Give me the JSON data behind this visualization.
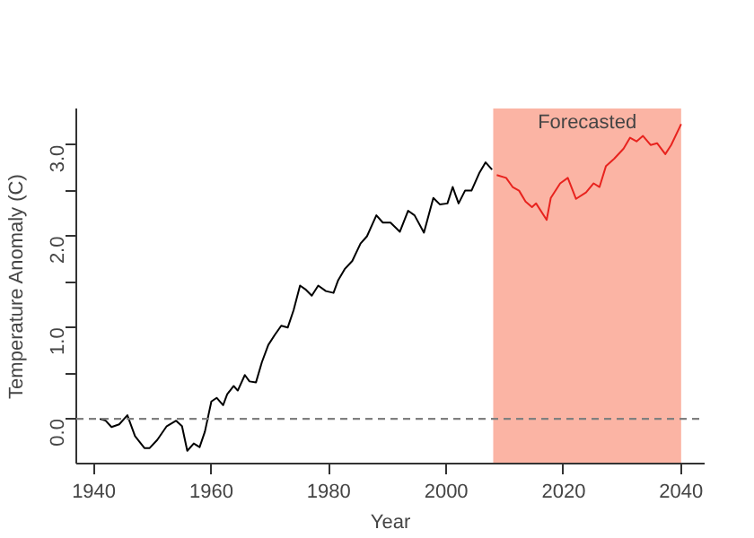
{
  "chart_data": {
    "type": "line",
    "xlabel": "Year",
    "ylabel": "Temperature Anomaly (C)",
    "series": [
      {
        "color": "#000000",
        "x": [
          1941,
          1942,
          1943,
          1944.3,
          1945.7,
          1947,
          1948.6,
          1949.5,
          1950.8,
          1952.4,
          1954,
          1955,
          1955.9,
          1957,
          1958,
          1958.9,
          1960,
          1960.9,
          1962,
          1962.7,
          1963.8,
          1964.5,
          1965.7,
          1966.5,
          1967.6,
          1968.6,
          1969.7,
          1970.8,
          1971.9,
          1973,
          1974,
          1975.1,
          1976,
          1977.1,
          1978.2,
          1979.5,
          1980.8,
          1981.6,
          1982.7,
          1984,
          1985.4,
          1986.5,
          1988.1,
          1989.2,
          1990.5,
          1992.1,
          1993.5,
          1994.6,
          1996.2,
          1997.8,
          1998.9,
          2000.2,
          2001.1,
          2002.1,
          2003.2,
          2004.3,
          2005.6,
          2006.7,
          2007.8
        ],
        "values": [
          0.0,
          -0.02,
          -0.09,
          -0.06,
          0.04,
          -0.19,
          -0.32,
          -0.32,
          -0.23,
          -0.08,
          -0.02,
          -0.08,
          -0.35,
          -0.27,
          -0.31,
          -0.14,
          0.19,
          0.23,
          0.15,
          0.27,
          0.36,
          0.31,
          0.48,
          0.41,
          0.4,
          0.62,
          0.81,
          0.92,
          1.02,
          1.0,
          1.19,
          1.46,
          1.42,
          1.35,
          1.46,
          1.4,
          1.38,
          1.52,
          1.64,
          1.73,
          1.92,
          2.0,
          2.23,
          2.15,
          2.15,
          2.05,
          2.28,
          2.23,
          2.04,
          2.42,
          2.35,
          2.36,
          2.54,
          2.36,
          2.5,
          2.5,
          2.69,
          2.81,
          2.73
        ]
      },
      {
        "color": "#e8231e",
        "x": [
          2008.6,
          2010.2,
          2011.3,
          2012.4,
          2013.5,
          2014.6,
          2015.3,
          2017.1,
          2017.8,
          2019.4,
          2020.7,
          2022.1,
          2023.8,
          2025.1,
          2026.1,
          2027.2,
          2028.6,
          2030.2,
          2031.3,
          2032.4,
          2033.5,
          2034.8,
          2035.9,
          2037.3,
          2038.3,
          2040
        ],
        "values": [
          2.67,
          2.64,
          2.54,
          2.5,
          2.38,
          2.32,
          2.36,
          2.18,
          2.42,
          2.58,
          2.64,
          2.41,
          2.48,
          2.58,
          2.54,
          2.77,
          2.85,
          2.96,
          3.08,
          3.04,
          3.1,
          3.0,
          3.02,
          2.9,
          3.0,
          3.23
        ]
      }
    ],
    "xlim": [
      1937,
      2044
    ],
    "xticks": [
      1940,
      1960,
      1980,
      2000,
      2020,
      2040
    ],
    "ylim": [
      -0.49,
      3.4
    ],
    "yticks": [
      {
        "value": 0,
        "label": "0.0"
      },
      {
        "value": 0.5,
        "label": null
      },
      {
        "value": 1,
        "label": "1.0"
      },
      {
        "value": 1.5,
        "label": null
      },
      {
        "value": 2,
        "label": "2.0"
      },
      {
        "value": 2.5,
        "label": null
      },
      {
        "value": 3,
        "label": "3.0"
      }
    ],
    "ref_lines": [
      {
        "axis": "y",
        "value": 0,
        "color": "#808080",
        "line_style": "dashed"
      }
    ],
    "bands": [
      {
        "axis": "x",
        "from": 2008,
        "to": 2040,
        "label": "Forecasted",
        "color": "#fbb4a4"
      }
    ],
    "grid": false,
    "marker": "none",
    "line_style": "solid"
  }
}
